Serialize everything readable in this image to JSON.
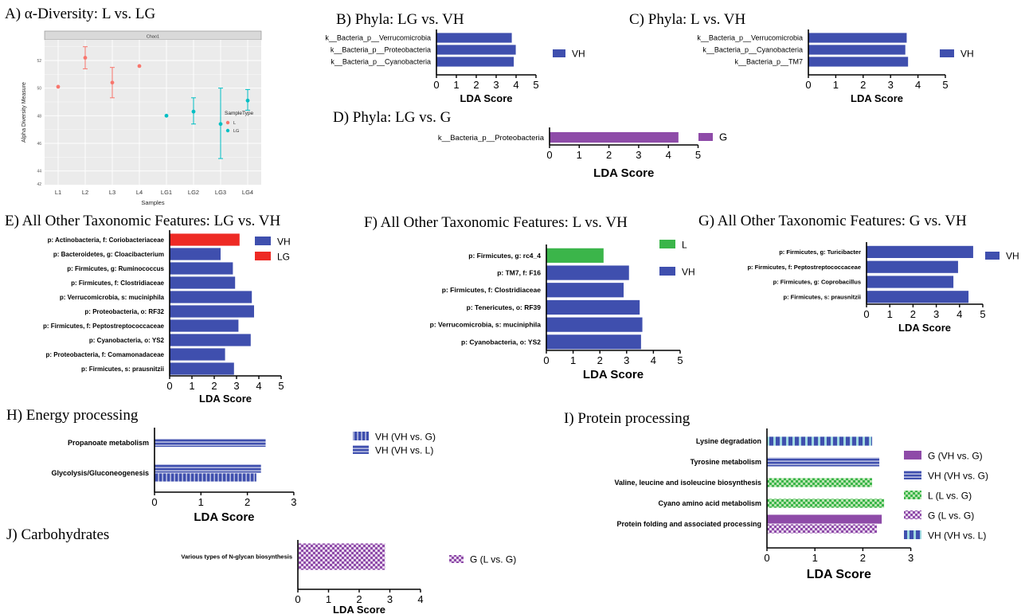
{
  "colors": {
    "blue": "#3F4FAE",
    "red": "#EE2A24",
    "green": "#3BB54A",
    "purple": "#8E4BA8",
    "div_L": "#F8766D",
    "div_LG": "#00BFC4"
  },
  "chart_data": [
    {
      "id": "A",
      "type": "scatter",
      "title": "A) α-Diversity: L vs. LG",
      "strip_label": "Chao1",
      "xlabel": "Samples",
      "ylabel": "Alpha Diversity Measure",
      "categories": [
        "L1",
        "L2",
        "L3",
        "L4",
        "LG1",
        "LG2",
        "LG3",
        "LG4"
      ],
      "y_ticks": [
        "52",
        "50",
        "48",
        "46",
        "44",
        "42"
      ],
      "legend_title": "SampleType",
      "legend": [
        "L",
        "LG"
      ],
      "grid": true,
      "points": [
        {
          "x": "L1",
          "y": 50.1,
          "lo": 50.1,
          "hi": 50.1,
          "group": "L"
        },
        {
          "x": "L2",
          "y": 52.2,
          "lo": 51.4,
          "hi": 53.0,
          "group": "L"
        },
        {
          "x": "L3",
          "y": 50.4,
          "lo": 49.3,
          "hi": 51.5,
          "group": "L"
        },
        {
          "x": "L4",
          "y": 51.6,
          "lo": 51.6,
          "hi": 51.6,
          "group": "L"
        },
        {
          "x": "LG1",
          "y": 48.0,
          "lo": 48.0,
          "hi": 48.0,
          "group": "LG"
        },
        {
          "x": "LG2",
          "y": 48.3,
          "lo": 47.4,
          "hi": 49.3,
          "group": "LG"
        },
        {
          "x": "LG3",
          "y": 47.4,
          "lo": 44.9,
          "hi": 50.0,
          "group": "LG"
        },
        {
          "x": "LG4",
          "y": 49.1,
          "lo": 48.4,
          "hi": 49.9,
          "group": "LG"
        }
      ]
    },
    {
      "id": "B",
      "type": "bar",
      "title": "B) Phyla: LG vs. VH",
      "xlabel": "LDA Score",
      "xlim": [
        0,
        5
      ],
      "xticks": [
        "0",
        "1",
        "2",
        "3",
        "4",
        "5"
      ],
      "categories": [
        "k__Bacteria_p__Verrucomicrobia",
        "k__Bacteria_p__Proteobacteria",
        "k__Bacteria_p__Cyanobacteria"
      ],
      "values": [
        3.8,
        4.0,
        3.9
      ],
      "bar_groups": [
        "VH",
        "VH",
        "VH"
      ],
      "legend": [
        {
          "label": "VH",
          "fill": "solid",
          "color": "#3F4FAE"
        }
      ]
    },
    {
      "id": "C",
      "type": "bar",
      "title": "C) Phyla: L vs. VH",
      "xlabel": "LDA Score",
      "xlim": [
        0,
        5
      ],
      "xticks": [
        "0",
        "1",
        "2",
        "3",
        "4",
        "5"
      ],
      "categories": [
        "k__Bacteria_p__Verrucomicrobia",
        "k__Bacteria_p__Cyanobacteria",
        "k__Bacteria_p__TM7"
      ],
      "values": [
        3.6,
        3.55,
        3.65
      ],
      "bar_groups": [
        "VH",
        "VH",
        "VH"
      ],
      "legend": [
        {
          "label": "VH",
          "fill": "solid",
          "color": "#3F4FAE"
        }
      ]
    },
    {
      "id": "D",
      "type": "bar",
      "title": "D) Phyla: LG vs. G",
      "xlabel": "LDA Score",
      "xlim": [
        0,
        5
      ],
      "xticks": [
        "0",
        "1",
        "2",
        "3",
        "4",
        "5"
      ],
      "categories": [
        "k__Bacteria_p__Proteobacteria"
      ],
      "values": [
        4.35
      ],
      "bar_groups": [
        "G"
      ],
      "legend": [
        {
          "label": "G",
          "fill": "solid",
          "color": "#8E4BA8"
        }
      ]
    },
    {
      "id": "E",
      "type": "bar",
      "title": "E) All Other Taxonomic Features: LG vs. VH",
      "xlabel": "LDA Score",
      "xlim": [
        0,
        5
      ],
      "xticks": [
        "0",
        "1",
        "2",
        "3",
        "4",
        "5"
      ],
      "categories": [
        "p: Actinobacteria, f: Coriobacteriaceae",
        "p: Bacteroidetes, g: Cloacibacterium",
        "p: Firmicutes, g: Ruminococcus",
        "p: Firmicutes, f: Clostridiaceae",
        "p: Verrucomicrobia, s: muciniphila",
        "p: Proteobacteria, o: RF32",
        "p: Firmicutes, f: Peptostreptococcaceae",
        "p: Cyanobacteria, o: YS2",
        "p: Proteobacteria, f: Comamonadaceae",
        "p: Firmicutes, s: prausnitzii"
      ],
      "values": [
        3.15,
        2.3,
        2.85,
        2.95,
        3.7,
        3.8,
        3.1,
        3.65,
        2.5,
        2.9
      ],
      "bar_groups": [
        "LG",
        "VH",
        "VH",
        "VH",
        "VH",
        "VH",
        "VH",
        "VH",
        "VH",
        "VH"
      ],
      "legend": [
        {
          "label": "VH",
          "fill": "solid",
          "color": "#3F4FAE"
        },
        {
          "label": "LG",
          "fill": "solid",
          "color": "#EE2A24"
        }
      ]
    },
    {
      "id": "F",
      "type": "bar",
      "title": "F) All Other Taxonomic Features: L vs. VH",
      "xlabel": "LDA Score",
      "xlim": [
        0,
        5
      ],
      "xticks": [
        "0",
        "1",
        "2",
        "3",
        "4",
        "5"
      ],
      "categories": [
        "p: Firmicutes, g: rc4_4",
        "p: TM7, f: F16",
        "p: Firmicutes, f: Clostridiaceae",
        "p: Tenericutes, o: RF39",
        "p: Verrucomicrobia, s: muciniphila",
        "p: Cyanobacteria, o: YS2"
      ],
      "values": [
        2.15,
        3.1,
        2.9,
        3.5,
        3.6,
        3.55
      ],
      "bar_groups": [
        "L",
        "VH",
        "VH",
        "VH",
        "VH",
        "VH"
      ],
      "legend": [
        {
          "label": "L",
          "fill": "solid",
          "color": "#3BB54A"
        },
        {
          "label": "VH",
          "fill": "solid",
          "color": "#3F4FAE"
        }
      ]
    },
    {
      "id": "G",
      "type": "bar",
      "title": "G) All Other Taxonomic Features: G vs. VH",
      "xlabel": "LDA Score",
      "xlim": [
        0,
        5
      ],
      "xticks": [
        "0",
        "1",
        "2",
        "3",
        "4",
        "5"
      ],
      "categories": [
        "p: Firmicutes, g: Turicibacter",
        "p: Firmicutes, f: Peptostreptococcaceae",
        "p: Firmicutes, g: Coprobacillus",
        "p: Firmicutes, s: prausnitzii"
      ],
      "values": [
        4.6,
        3.95,
        3.75,
        4.4
      ],
      "bar_groups": [
        "VH",
        "VH",
        "VH",
        "VH"
      ],
      "legend": [
        {
          "label": "VH",
          "fill": "solid",
          "color": "#3F4FAE"
        }
      ]
    },
    {
      "id": "H",
      "type": "bar",
      "title": "H) Energy processing",
      "xlabel": "LDA Score",
      "xlim": [
        0,
        3
      ],
      "xticks": [
        "0",
        "1",
        "2",
        "3"
      ],
      "categories": [
        "Propanoate metabolism",
        "Glycolysis/Gluconeogenesis"
      ],
      "bars": [
        {
          "cat": 0,
          "value": 2.4,
          "fill": "hlines",
          "color": "#3F4FAE"
        },
        {
          "cat": 1,
          "value": 2.3,
          "fill": "hlines",
          "color": "#3F4FAE"
        },
        {
          "cat": 1,
          "value": 2.2,
          "fill": "vlines",
          "color": "#3F4FAE"
        }
      ],
      "legend": [
        {
          "label": "VH (VH vs. G)",
          "fill": "vlines",
          "color": "#3F4FAE"
        },
        {
          "label": "VH (VH vs. L)",
          "fill": "hlines",
          "color": "#3F4FAE"
        }
      ]
    },
    {
      "id": "I",
      "type": "bar",
      "title": "I) Protein processing",
      "title_first_letter": "P",
      "xlabel": "LDA Score",
      "xlim": [
        0,
        3
      ],
      "xticks": [
        "0",
        "1",
        "2",
        "3"
      ],
      "categories": [
        "Lysine degradation",
        "Tyrosine metabolism",
        "Valine, leucine and isoleucine biosynthesis",
        "Cyano amino acid metabolism",
        "Protein folding and associated processing"
      ],
      "bars": [
        {
          "cat": 0,
          "value": 2.2,
          "fill": "vstripes",
          "color": "#3F4FAE"
        },
        {
          "cat": 1,
          "value": 2.35,
          "fill": "hlines",
          "color": "#3F4FAE"
        },
        {
          "cat": 2,
          "value": 2.2,
          "fill": "checker",
          "color": "#3BB54A"
        },
        {
          "cat": 3,
          "value": 2.45,
          "fill": "checker",
          "color": "#3BB54A"
        },
        {
          "cat": 4,
          "value": 2.4,
          "fill": "solid",
          "color": "#8E4BA8"
        },
        {
          "cat": 4,
          "value": 2.3,
          "fill": "checker",
          "color": "#8E4BA8"
        }
      ],
      "legend": [
        {
          "label": "G (VH vs. G)",
          "fill": "solid",
          "color": "#8E4BA8"
        },
        {
          "label": "VH (VH vs. G)",
          "fill": "hlines",
          "color": "#3F4FAE"
        },
        {
          "label": "L (L vs. G)",
          "fill": "checker",
          "color": "#3BB54A"
        },
        {
          "label": "G (L vs. G)",
          "fill": "checker",
          "color": "#8E4BA8"
        },
        {
          "label": "VH (VH vs. L)",
          "fill": "vstripes",
          "color": "#3F4FAE"
        }
      ]
    },
    {
      "id": "J",
      "type": "bar",
      "title": "J) Carbohydrates",
      "xlabel": "LDA Score",
      "xlim": [
        0,
        4
      ],
      "xticks": [
        "0",
        "1",
        "2",
        "3",
        "4"
      ],
      "categories": [
        "Various types of N-glycan biosynthesis"
      ],
      "bars": [
        {
          "cat": 0,
          "value": 2.85,
          "fill": "checker",
          "color": "#8E4BA8"
        }
      ],
      "legend": [
        {
          "label": "G (L vs. G)",
          "fill": "checker",
          "color": "#8E4BA8"
        }
      ]
    }
  ]
}
